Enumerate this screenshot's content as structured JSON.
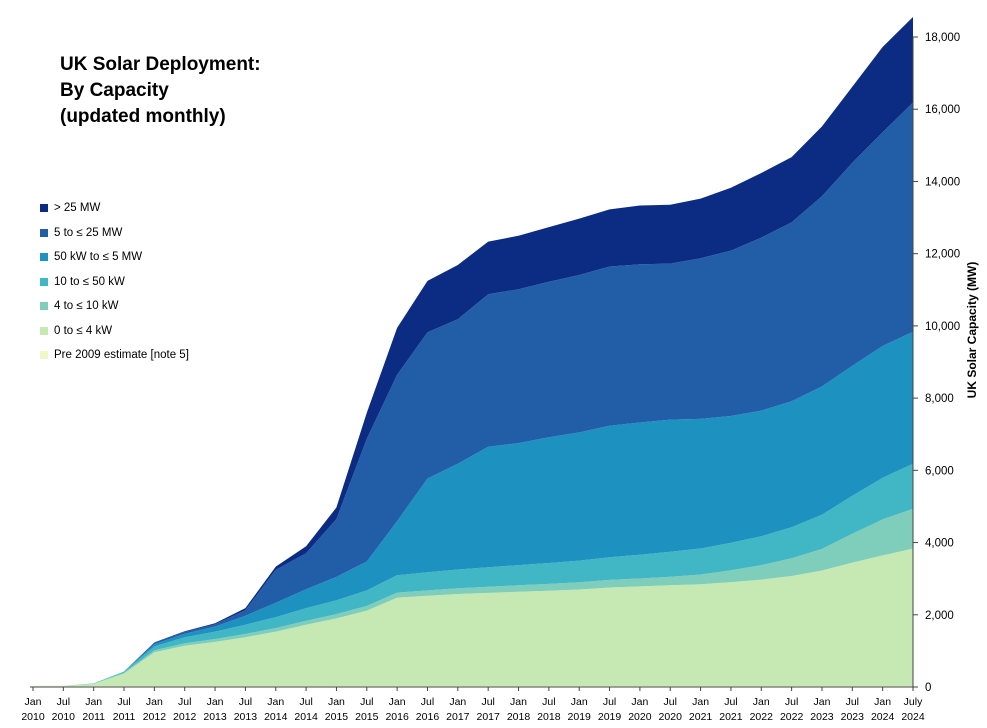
{
  "chart_data": {
    "type": "area",
    "stacked": true,
    "title_lines": [
      "UK Solar Deployment:",
      "By Capacity",
      "(updated monthly)"
    ],
    "ylabel": "UK Solar Capacity (MW)",
    "xlabel": "",
    "ylim": [
      0,
      18000
    ],
    "y_ticks": [
      "0",
      "2,000",
      "4,000",
      "6,000",
      "8,000",
      "10,000",
      "12,000",
      "14,000",
      "16,000",
      "18,000"
    ],
    "y_axis_side": "right",
    "grid": false,
    "legend_position": "left",
    "x_ticks": [
      {
        "month": "Jan",
        "year": "2010"
      },
      {
        "month": "Jul",
        "year": "2010"
      },
      {
        "month": "Jan",
        "year": "2011"
      },
      {
        "month": "Jul",
        "year": "2011"
      },
      {
        "month": "Jan",
        "year": "2012"
      },
      {
        "month": "Jul",
        "year": "2012"
      },
      {
        "month": "Jan",
        "year": "2013"
      },
      {
        "month": "Jul",
        "year": "2013"
      },
      {
        "month": "Jan",
        "year": "2014"
      },
      {
        "month": "Jul",
        "year": "2014"
      },
      {
        "month": "Jan",
        "year": "2015"
      },
      {
        "month": "Jul",
        "year": "2015"
      },
      {
        "month": "Jan",
        "year": "2016"
      },
      {
        "month": "Jul",
        "year": "2016"
      },
      {
        "month": "Jan",
        "year": "2017"
      },
      {
        "month": "Jul",
        "year": "2017"
      },
      {
        "month": "Jan",
        "year": "2018"
      },
      {
        "month": "Jul",
        "year": "2018"
      },
      {
        "month": "Jan",
        "year": "2019"
      },
      {
        "month": "Jul",
        "year": "2019"
      },
      {
        "month": "Jan",
        "year": "2020"
      },
      {
        "month": "Jul",
        "year": "2020"
      },
      {
        "month": "Jan",
        "year": "2021"
      },
      {
        "month": "Jul",
        "year": "2021"
      },
      {
        "month": "Jan",
        "year": "2022"
      },
      {
        "month": "Jul",
        "year": "2022"
      },
      {
        "month": "Jan",
        "year": "2023"
      },
      {
        "month": "Jul",
        "year": "2023"
      },
      {
        "month": "Jan",
        "year": "2024"
      },
      {
        "month": "July",
        "year": "2024"
      }
    ],
    "x": [
      "2010-01",
      "2010-07",
      "2011-01",
      "2011-07",
      "2012-01",
      "2012-07",
      "2013-01",
      "2013-07",
      "2014-01",
      "2014-07",
      "2015-01",
      "2015-07",
      "2016-01",
      "2016-07",
      "2017-01",
      "2017-07",
      "2018-01",
      "2018-07",
      "2019-01",
      "2019-07",
      "2020-01",
      "2020-07",
      "2021-01",
      "2021-07",
      "2022-01",
      "2022-07",
      "2023-01",
      "2023-07",
      "2024-01",
      "2024-07"
    ],
    "series": [
      {
        "name": "Pre 2009 estimate [note 5]",
        "color": "#eef8c8",
        "values": [
          25,
          25,
          25,
          25,
          25,
          25,
          25,
          25,
          25,
          25,
          25,
          25,
          25,
          25,
          25,
          25,
          25,
          25,
          25,
          25,
          25,
          25,
          25,
          25,
          25,
          25,
          25,
          25,
          25,
          25
        ]
      },
      {
        "name": "0 to ≤ 4 kW",
        "color": "#c6e9b3",
        "values": [
          5,
          10,
          60,
          350,
          940,
          1115,
          1225,
          1355,
          1510,
          1700,
          1875,
          2090,
          2450,
          2500,
          2550,
          2580,
          2610,
          2640,
          2675,
          2730,
          2760,
          2790,
          2820,
          2880,
          2950,
          3050,
          3200,
          3420,
          3620,
          3810
        ]
      },
      {
        "name": "4 to ≤ 10 kW",
        "color": "#7fcdbb",
        "values": [
          0,
          0,
          5,
          25,
          50,
          70,
          80,
          90,
          100,
          110,
          120,
          130,
          140,
          150,
          160,
          170,
          180,
          190,
          200,
          210,
          220,
          240,
          270,
          330,
          400,
          490,
          600,
          800,
          1000,
          1100
        ]
      },
      {
        "name": "10 to ≤ 50 kW",
        "color": "#41b6c4",
        "values": [
          0,
          0,
          10,
          30,
          110,
          165,
          205,
          255,
          300,
          350,
          380,
          430,
          480,
          500,
          520,
          540,
          560,
          580,
          600,
          630,
          660,
          690,
          720,
          760,
          800,
          860,
          950,
          1050,
          1150,
          1250
        ]
      },
      {
        "name": "50 kW to ≤ 5 MW",
        "color": "#1d91c0",
        "values": [
          0,
          0,
          0,
          0,
          60,
          100,
          140,
          250,
          400,
          520,
          650,
          800,
          1500,
          2600,
          2930,
          3340,
          3380,
          3480,
          3550,
          3640,
          3660,
          3660,
          3590,
          3510,
          3480,
          3490,
          3550,
          3600,
          3650,
          3650
        ]
      },
      {
        "name": "5 to ≤ 25 MW",
        "color": "#225ea8",
        "values": [
          0,
          0,
          0,
          0,
          40,
          50,
          60,
          150,
          910,
          1000,
          1600,
          3400,
          4050,
          4050,
          4000,
          4220,
          4260,
          4310,
          4360,
          4410,
          4380,
          4320,
          4450,
          4580,
          4790,
          4950,
          5270,
          5620,
          5920,
          6350
        ]
      },
      {
        "name": "> 25 MW",
        "color": "#0c2c84",
        "values": [
          0,
          0,
          0,
          0,
          10,
          20,
          30,
          60,
          90,
          190,
          320,
          720,
          1300,
          1420,
          1500,
          1460,
          1480,
          1510,
          1560,
          1580,
          1630,
          1630,
          1650,
          1740,
          1790,
          1810,
          1930,
          2110,
          2360,
          2370
        ]
      }
    ]
  }
}
